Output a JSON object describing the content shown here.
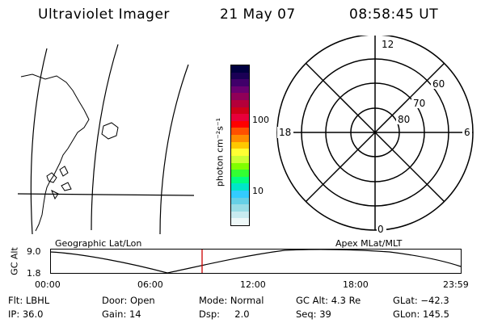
{
  "header": {
    "instrument": "Ultraviolet Imager",
    "date": "21 May 07",
    "time": "08:58:45 UT"
  },
  "colorbar": {
    "unit_label": "photon cm⁻²s⁻¹",
    "tick_100": "100",
    "tick_10": "10",
    "colors": [
      "#000040",
      "#1a0055",
      "#40006a",
      "#6a0070",
      "#900058",
      "#b4003a",
      "#d00018",
      "#e8003a",
      "#ff0000",
      "#ff5000",
      "#ff8c00",
      "#ffc800",
      "#ffff33",
      "#ccff33",
      "#80ff00",
      "#33ff33",
      "#00ff80",
      "#00e6c8",
      "#33ccff",
      "#66d0e6",
      "#99dde6",
      "#c8ebf0",
      "#eef8f8"
    ]
  },
  "polar": {
    "mlt_12": "12",
    "mlt_18": "18",
    "mlt_6": "6",
    "mlt_0": "0",
    "lat_60": "60",
    "lat_70": "70",
    "lat_80": "80"
  },
  "timeline": {
    "left_title": "Geographic Lat/Lon",
    "right_title": "Apex MLat/MLT",
    "axis_label": "GC Alt",
    "y_hi": "9.0",
    "y_lo": "1.8",
    "x_ticks": [
      "00:00",
      "06:00",
      "12:00",
      "18:00",
      "23:59"
    ],
    "marker_color": "#cc0000"
  },
  "footer": {
    "flt": "Flt: LBHL",
    "ip": "IP: 36.0",
    "door": "Door: Open",
    "gain": "Gain: 14",
    "mode": "Mode: Normal",
    "dsp": "Dsp:     2.0",
    "gcalt": "GC Alt: 4.3 Re",
    "seq": "Seq: 39",
    "glat": "GLat: −42.3",
    "glon": "GLon: 145.5"
  }
}
